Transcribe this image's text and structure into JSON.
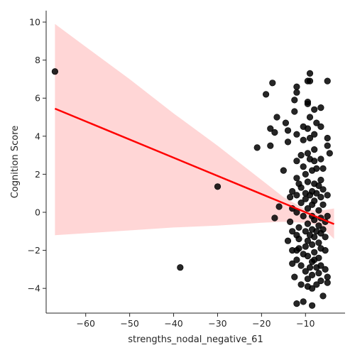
{
  "chart_data": {
    "type": "scatter",
    "title": "",
    "xlabel": "strengths_nodal_negative_61",
    "ylabel": "Cognition Score",
    "xlim": [
      -69,
      -1
    ],
    "ylim": [
      -5.3,
      10.6
    ],
    "xticks": [
      -60,
      -50,
      -40,
      -30,
      -20,
      -10
    ],
    "yticks": [
      -4,
      -2,
      0,
      2,
      4,
      6,
      8,
      10
    ],
    "grid": false,
    "legend": "none",
    "colors": {
      "points": "#000000",
      "regression_line": "#ff0000",
      "confidence_band": "#ffc0c0"
    },
    "regression": {
      "x": [
        -67,
        -3.5
      ],
      "y": [
        5.45,
        -0.62
      ]
    },
    "confidence_band": {
      "x": [
        -67,
        -60,
        -50,
        -40,
        -30,
        -20,
        -15,
        -10,
        -8,
        -6,
        -3.5
      ],
      "upper": [
        9.9,
        8.7,
        7.0,
        5.2,
        3.5,
        1.7,
        0.8,
        0.15,
        0.1,
        0.1,
        0.2
      ],
      "lower": [
        -1.2,
        -1.1,
        -0.95,
        -0.8,
        -0.7,
        -0.55,
        -0.5,
        -0.55,
        -0.65,
        -0.85,
        -1.4
      ]
    },
    "points": [
      {
        "x": -67,
        "y": 7.4
      },
      {
        "x": -38.5,
        "y": -2.9
      },
      {
        "x": -30,
        "y": 1.35
      },
      {
        "x": -21,
        "y": 3.4
      },
      {
        "x": -19,
        "y": 6.2
      },
      {
        "x": -18,
        "y": 4.4
      },
      {
        "x": -17.5,
        "y": 6.8
      },
      {
        "x": -17,
        "y": 4.2
      },
      {
        "x": -18,
        "y": 3.5
      },
      {
        "x": -17,
        "y": -0.3
      },
      {
        "x": -16.5,
        "y": 5.0
      },
      {
        "x": -16,
        "y": 0.3
      },
      {
        "x": -15,
        "y": 2.2
      },
      {
        "x": -14.5,
        "y": 4.7
      },
      {
        "x": -14,
        "y": 4.3
      },
      {
        "x": -14,
        "y": 3.7
      },
      {
        "x": -13.5,
        "y": 0.8
      },
      {
        "x": -13,
        "y": 1.1
      },
      {
        "x": -13.5,
        "y": -0.5
      },
      {
        "x": -14,
        "y": -1.5
      },
      {
        "x": -13,
        "y": -2.0
      },
      {
        "x": -13,
        "y": -2.7
      },
      {
        "x": -12.5,
        "y": -3.4
      },
      {
        "x": -12,
        "y": 6.3
      },
      {
        "x": -12,
        "y": 6.6
      },
      {
        "x": -12.5,
        "y": 5.9
      },
      {
        "x": -12.5,
        "y": 5.3
      },
      {
        "x": -12,
        "y": 4.1
      },
      {
        "x": -12,
        "y": 2.7
      },
      {
        "x": -12,
        "y": 1.8
      },
      {
        "x": -11.5,
        "y": 1.5
      },
      {
        "x": -12,
        "y": 0.0
      },
      {
        "x": -11.5,
        "y": -0.8
      },
      {
        "x": -12,
        "y": -1.2
      },
      {
        "x": -11.5,
        "y": -1.9
      },
      {
        "x": -12,
        "y": -2.5
      },
      {
        "x": -12,
        "y": -4.8
      },
      {
        "x": -11,
        "y": -3.8
      },
      {
        "x": -11,
        "y": 3.0
      },
      {
        "x": -11,
        "y": 0.5
      },
      {
        "x": -10.5,
        "y": 4.5
      },
      {
        "x": -10.5,
        "y": 3.8
      },
      {
        "x": -10.5,
        "y": 2.4
      },
      {
        "x": -10,
        "y": 1.0
      },
      {
        "x": -10.5,
        "y": -0.2
      },
      {
        "x": -10,
        "y": -1.0
      },
      {
        "x": -10.5,
        "y": -2.2
      },
      {
        "x": -10,
        "y": -3.1
      },
      {
        "x": -10.5,
        "y": -4.7
      },
      {
        "x": -9.5,
        "y": 6.9
      },
      {
        "x": -9.5,
        "y": 5.8
      },
      {
        "x": -9.5,
        "y": 5.7
      },
      {
        "x": -9.5,
        "y": 4.4
      },
      {
        "x": -9.5,
        "y": 3.1
      },
      {
        "x": -9.5,
        "y": 1.6
      },
      {
        "x": -9.5,
        "y": 0.2
      },
      {
        "x": -9.5,
        "y": -0.6
      },
      {
        "x": -9.5,
        "y": -1.5
      },
      {
        "x": -9.5,
        "y": -2.3
      },
      {
        "x": -9.5,
        "y": -3.5
      },
      {
        "x": -9,
        "y": 7.3
      },
      {
        "x": -9,
        "y": 6.9
      },
      {
        "x": -9,
        "y": 5.0
      },
      {
        "x": -9,
        "y": 3.9
      },
      {
        "x": -9,
        "y": 2.8
      },
      {
        "x": -8.5,
        "y": 2.2
      },
      {
        "x": -8.5,
        "y": 1.1
      },
      {
        "x": -8.5,
        "y": 0.4
      },
      {
        "x": -8.5,
        "y": -0.2
      },
      {
        "x": -8.5,
        "y": -0.9
      },
      {
        "x": -8.5,
        "y": -1.7
      },
      {
        "x": -8.5,
        "y": -2.6
      },
      {
        "x": -8.5,
        "y": -3.3
      },
      {
        "x": -8.5,
        "y": -4.0
      },
      {
        "x": -8.5,
        "y": -4.9
      },
      {
        "x": -8,
        "y": 5.4
      },
      {
        "x": -8,
        "y": 4.1
      },
      {
        "x": -8,
        "y": 2.7
      },
      {
        "x": -8,
        "y": 1.5
      },
      {
        "x": -8,
        "y": 0.6
      },
      {
        "x": -8,
        "y": -0.4
      },
      {
        "x": -8,
        "y": -1.3
      },
      {
        "x": -8,
        "y": -2.1
      },
      {
        "x": -7.5,
        "y": -2.9
      },
      {
        "x": -7.5,
        "y": -3.8
      },
      {
        "x": -7.5,
        "y": 4.7
      },
      {
        "x": -7.5,
        "y": 2.3
      },
      {
        "x": -7.5,
        "y": 1.0
      },
      {
        "x": -7,
        "y": 0.1
      },
      {
        "x": -7,
        "y": -0.7
      },
      {
        "x": -7,
        "y": -1.6
      },
      {
        "x": -7,
        "y": -2.4
      },
      {
        "x": -7,
        "y": -3.2
      },
      {
        "x": -6.5,
        "y": 5.5
      },
      {
        "x": -6.5,
        "y": 4.5
      },
      {
        "x": -6.5,
        "y": 2.8
      },
      {
        "x": -6.5,
        "y": 1.7
      },
      {
        "x": -6.5,
        "y": 0.8
      },
      {
        "x": -6.5,
        "y": -0.3
      },
      {
        "x": -6.5,
        "y": -1.1
      },
      {
        "x": -6.5,
        "y": -1.9
      },
      {
        "x": -6.5,
        "y": -2.8
      },
      {
        "x": -6.5,
        "y": -3.6
      },
      {
        "x": -6,
        "y": -4.4
      },
      {
        "x": -6,
        "y": 2.3
      },
      {
        "x": -6,
        "y": 1.2
      },
      {
        "x": -6,
        "y": 0.4
      },
      {
        "x": -5.5,
        "y": -0.5
      },
      {
        "x": -5.5,
        "y": -1.3
      },
      {
        "x": -5.5,
        "y": -2.0
      },
      {
        "x": -5.5,
        "y": -3.0
      },
      {
        "x": -5,
        "y": 6.9
      },
      {
        "x": -5,
        "y": 3.9
      },
      {
        "x": -5,
        "y": 3.5
      },
      {
        "x": -4.5,
        "y": 3.1
      },
      {
        "x": -5,
        "y": 0.9
      },
      {
        "x": -5,
        "y": -0.2
      },
      {
        "x": -5,
        "y": -3.4
      },
      {
        "x": -5,
        "y": -3.7
      },
      {
        "x": -9,
        "y": -2.9
      },
      {
        "x": -9,
        "y": -1.2
      },
      {
        "x": -10,
        "y": 0.7
      },
      {
        "x": -11,
        "y": 1.3
      },
      {
        "x": -12,
        "y": 0.9
      },
      {
        "x": -13,
        "y": -1.0
      },
      {
        "x": -11,
        "y": -2.8
      },
      {
        "x": -9.5,
        "y": -3.9
      },
      {
        "x": -7,
        "y": 1.4
      },
      {
        "x": -6,
        "y": -0.9
      },
      {
        "x": -10,
        "y": 2.0
      },
      {
        "x": -8,
        "y": 3.3
      },
      {
        "x": -11.5,
        "y": -1.4
      },
      {
        "x": -10,
        "y": -1.8
      },
      {
        "x": -7.5,
        "y": -1.0
      },
      {
        "x": -9,
        "y": 0.9
      },
      {
        "x": -8,
        "y": -2.5
      },
      {
        "x": -12,
        "y": -2.0
      },
      {
        "x": -13,
        "y": 0.2
      }
    ]
  }
}
